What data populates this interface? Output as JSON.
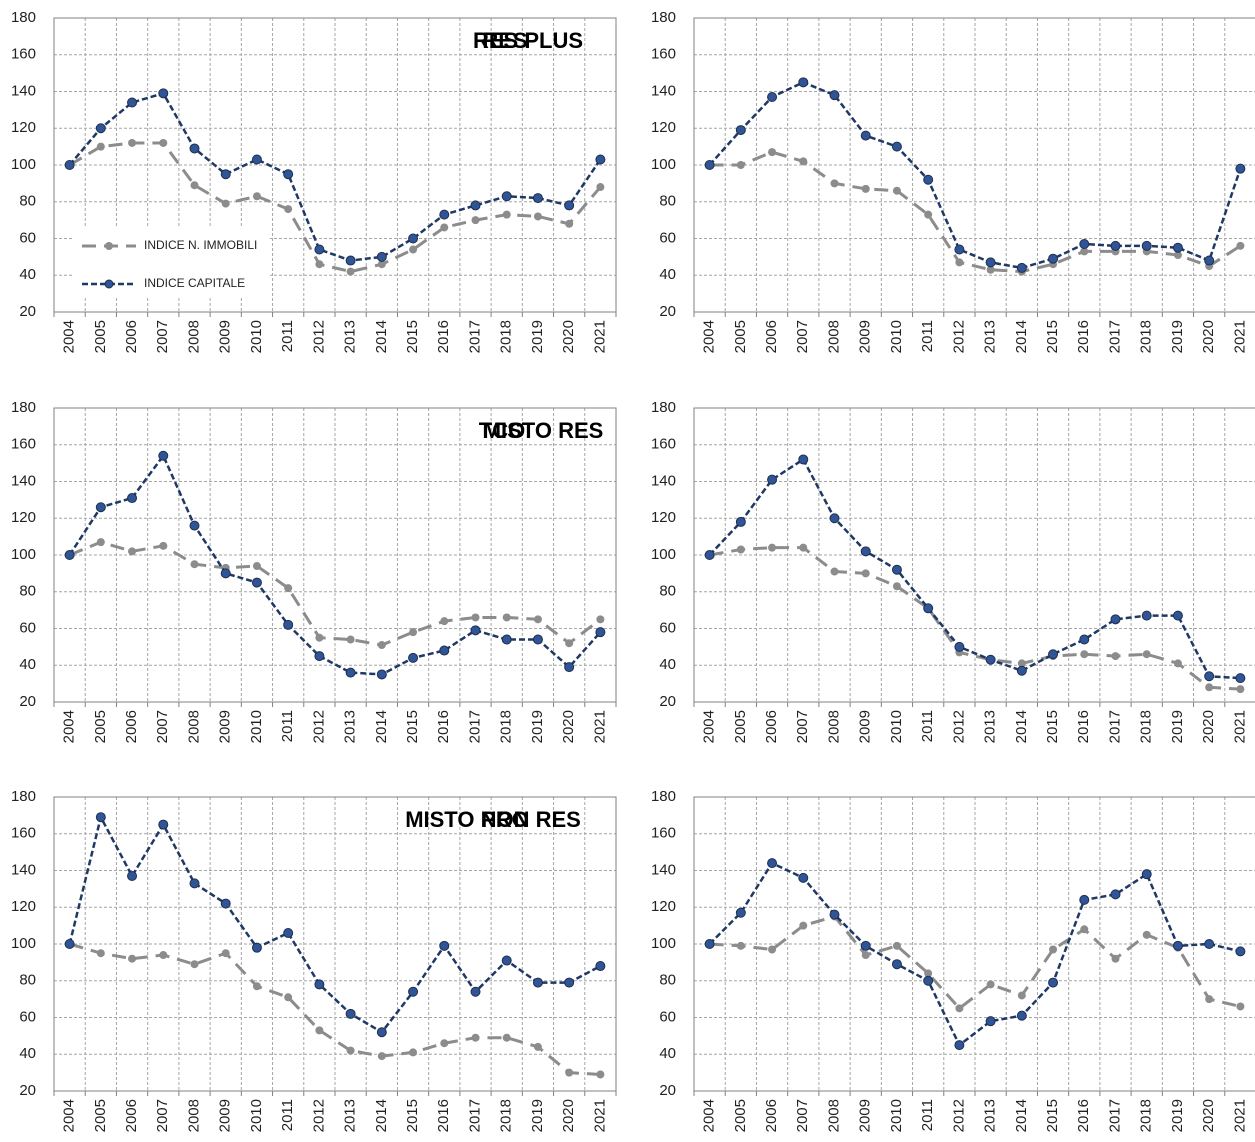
{
  "chart_data": [
    {
      "type": "line",
      "title": "RES",
      "legend": "lower-left",
      "categories": [
        "2004",
        "2005",
        "2006",
        "2007",
        "2008",
        "2009",
        "2010",
        "2011",
        "2012",
        "2013",
        "2014",
        "2015",
        "2016",
        "2017",
        "2018",
        "2019",
        "2020",
        "2021"
      ],
      "ylim": [
        20,
        180
      ],
      "yticks": [
        20,
        40,
        60,
        80,
        100,
        120,
        140,
        160,
        180
      ],
      "grid": true,
      "series": [
        {
          "name": "INDICE N. IMMOBILI",
          "color": "#8c8c8c",
          "values": [
            100,
            110,
            112,
            112,
            89,
            79,
            83,
            76,
            46,
            42,
            46,
            54,
            66,
            70,
            73,
            72,
            68,
            88
          ]
        },
        {
          "name": "INDICE CAPITALE",
          "color": "#1f3864",
          "values": [
            100,
            120,
            134,
            139,
            109,
            95,
            103,
            95,
            54,
            48,
            50,
            60,
            73,
            78,
            83,
            82,
            78,
            103
          ]
        }
      ]
    },
    {
      "type": "line",
      "title": "RES PLUS",
      "categories": [
        "2004",
        "2005",
        "2006",
        "2007",
        "2008",
        "2009",
        "2010",
        "2011",
        "2012",
        "2013",
        "2014",
        "2015",
        "2016",
        "2017",
        "2018",
        "2019",
        "2020",
        "2021"
      ],
      "ylim": [
        20,
        180
      ],
      "yticks": [
        20,
        40,
        60,
        80,
        100,
        120,
        140,
        160,
        180
      ],
      "grid": true,
      "series": [
        {
          "name": "INDICE N. IMMOBILI",
          "color": "#8c8c8c",
          "values": [
            100,
            100,
            107,
            102,
            90,
            87,
            86,
            73,
            47,
            43,
            42,
            46,
            53,
            53,
            53,
            51,
            45,
            56
          ]
        },
        {
          "name": "INDICE CAPITALE",
          "color": "#1f3864",
          "values": [
            100,
            119,
            137,
            145,
            138,
            116,
            110,
            92,
            54,
            47,
            44,
            49,
            57,
            56,
            56,
            55,
            48,
            98
          ]
        }
      ]
    },
    {
      "type": "line",
      "title": "MISTO RES",
      "categories": [
        "2004",
        "2005",
        "2006",
        "2007",
        "2008",
        "2009",
        "2010",
        "2011",
        "2012",
        "2013",
        "2014",
        "2015",
        "2016",
        "2017",
        "2018",
        "2019",
        "2020",
        "2021"
      ],
      "ylim": [
        20,
        180
      ],
      "yticks": [
        20,
        40,
        60,
        80,
        100,
        120,
        140,
        160,
        180
      ],
      "grid": true,
      "series": [
        {
          "name": "INDICE N. IMMOBILI",
          "color": "#8c8c8c",
          "values": [
            100,
            107,
            102,
            105,
            95,
            93,
            94,
            82,
            55,
            54,
            51,
            58,
            64,
            66,
            66,
            65,
            52,
            65
          ]
        },
        {
          "name": "INDICE CAPITALE",
          "color": "#1f3864",
          "values": [
            100,
            126,
            131,
            154,
            116,
            90,
            85,
            62,
            45,
            36,
            35,
            44,
            48,
            59,
            54,
            54,
            39,
            58
          ]
        }
      ]
    },
    {
      "type": "line",
      "title": "TCO",
      "categories": [
        "2004",
        "2005",
        "2006",
        "2007",
        "2008",
        "2009",
        "2010",
        "2011",
        "2012",
        "2013",
        "2014",
        "2015",
        "2016",
        "2017",
        "2018",
        "2019",
        "2020",
        "2021"
      ],
      "ylim": [
        20,
        180
      ],
      "yticks": [
        20,
        40,
        60,
        80,
        100,
        120,
        140,
        160,
        180
      ],
      "grid": true,
      "series": [
        {
          "name": "INDICE N. IMMOBILI",
          "color": "#8c8c8c",
          "values": [
            100,
            103,
            104,
            104,
            91,
            90,
            83,
            71,
            47,
            43,
            41,
            45,
            46,
            45,
            46,
            41,
            28,
            27
          ]
        },
        {
          "name": "INDICE CAPITALE",
          "color": "#1f3864",
          "values": [
            100,
            118,
            141,
            152,
            120,
            102,
            92,
            71,
            50,
            43,
            37,
            46,
            54,
            65,
            67,
            67,
            34,
            33
          ]
        }
      ]
    },
    {
      "type": "line",
      "title": "PRO",
      "categories": [
        "2004",
        "2005",
        "2006",
        "2007",
        "2008",
        "2009",
        "2010",
        "2011",
        "2012",
        "2013",
        "2014",
        "2015",
        "2016",
        "2017",
        "2018",
        "2019",
        "2020",
        "2021"
      ],
      "ylim": [
        20,
        180
      ],
      "yticks": [
        20,
        40,
        60,
        80,
        100,
        120,
        140,
        160,
        180
      ],
      "grid": true,
      "series": [
        {
          "name": "INDICE N. IMMOBILI",
          "color": "#8c8c8c",
          "values": [
            100,
            95,
            92,
            94,
            89,
            95,
            77,
            71,
            53,
            42,
            39,
            41,
            46,
            49,
            49,
            44,
            30,
            29
          ]
        },
        {
          "name": "INDICE CAPITALE",
          "color": "#1f3864",
          "values": [
            100,
            169,
            137,
            165,
            133,
            122,
            98,
            106,
            78,
            62,
            52,
            74,
            99,
            74,
            91,
            79,
            79,
            88
          ]
        }
      ]
    },
    {
      "type": "line",
      "title": "MISTO NON RES",
      "categories": [
        "2004",
        "2005",
        "2006",
        "2007",
        "2008",
        "2009",
        "2010",
        "2011",
        "2012",
        "2013",
        "2014",
        "2015",
        "2016",
        "2017",
        "2018",
        "2019",
        "2020",
        "2021"
      ],
      "ylim": [
        20,
        180
      ],
      "yticks": [
        20,
        40,
        60,
        80,
        100,
        120,
        140,
        160,
        180
      ],
      "grid": true,
      "series": [
        {
          "name": "INDICE N. IMMOBILI",
          "color": "#8c8c8c",
          "values": [
            100,
            99,
            97,
            110,
            115,
            94,
            99,
            84,
            65,
            78,
            72,
            97,
            108,
            92,
            105,
            98,
            70,
            66
          ]
        },
        {
          "name": "INDICE CAPITALE",
          "color": "#1f3864",
          "values": [
            100,
            117,
            144,
            136,
            116,
            99,
            89,
            80,
            45,
            58,
            61,
            79,
            124,
            127,
            138,
            99,
            100,
            96
          ]
        }
      ]
    }
  ]
}
